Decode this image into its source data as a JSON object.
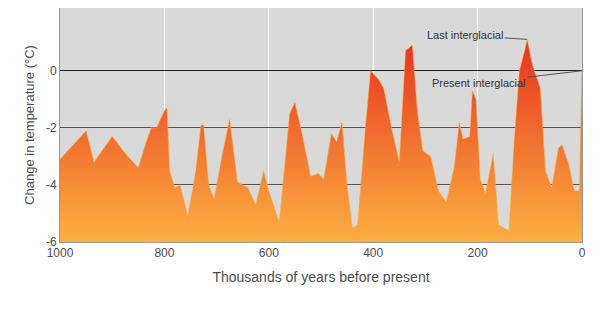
{
  "chart_data": {
    "type": "area",
    "x_label": "Thousands of years before present",
    "y_label": "Change in temperature (°C)",
    "x": [
      1000,
      950,
      935,
      900,
      870,
      850,
      835,
      825,
      815,
      800,
      795,
      790,
      780,
      770,
      755,
      740,
      730,
      725,
      715,
      705,
      690,
      675,
      660,
      640,
      625,
      610,
      600,
      580,
      560,
      550,
      535,
      520,
      505,
      495,
      480,
      470,
      460,
      450,
      440,
      430,
      415,
      405,
      390,
      380,
      365,
      350,
      338,
      325,
      315,
      305,
      290,
      275,
      260,
      245,
      235,
      228,
      215,
      210,
      203,
      195,
      185,
      170,
      160,
      140,
      130,
      120,
      110,
      105,
      95,
      80,
      70,
      58,
      45,
      38,
      25,
      15,
      5,
      0
    ],
    "values": [
      -3.1,
      -2.1,
      -3.2,
      -2.3,
      -3.0,
      -3.4,
      -2.5,
      -2.0,
      -2.0,
      -1.4,
      -1.3,
      -3.5,
      -4.1,
      -4.0,
      -5.1,
      -3.5,
      -1.9,
      -1.9,
      -4.0,
      -4.5,
      -3.0,
      -1.7,
      -3.9,
      -4.1,
      -4.7,
      -3.5,
      -4.2,
      -5.3,
      -1.5,
      -1.1,
      -2.3,
      -3.7,
      -3.6,
      -3.8,
      -2.2,
      -2.5,
      -1.8,
      -4.0,
      -5.5,
      -5.4,
      -2.0,
      0.0,
      -0.3,
      -0.6,
      -2.0,
      -3.2,
      0.7,
      0.9,
      -1.5,
      -2.8,
      -3.0,
      -4.2,
      -4.6,
      -3.4,
      -1.8,
      -2.4,
      -2.3,
      -0.7,
      -1.0,
      -3.8,
      -4.3,
      -2.9,
      -5.4,
      -5.6,
      -2.5,
      0.0,
      0.7,
      1.1,
      0.2,
      -0.6,
      -3.5,
      -4.1,
      -2.7,
      -2.6,
      -3.3,
      -4.2,
      -4.2,
      0.0
    ],
    "color": "#fbb040",
    "xlim": [
      1000,
      0
    ],
    "xticks": [
      1000,
      800,
      600,
      400,
      200,
      0
    ],
    "ylim": [
      -6,
      2.2
    ],
    "yticks": [
      -6,
      -4,
      -2,
      0
    ],
    "grid": true,
    "annotations": [
      {
        "text": "Last interglacial",
        "x": 105,
        "y": 1.1
      },
      {
        "text": "Present interglacial",
        "x": 0,
        "y": 0.0
      }
    ]
  }
}
